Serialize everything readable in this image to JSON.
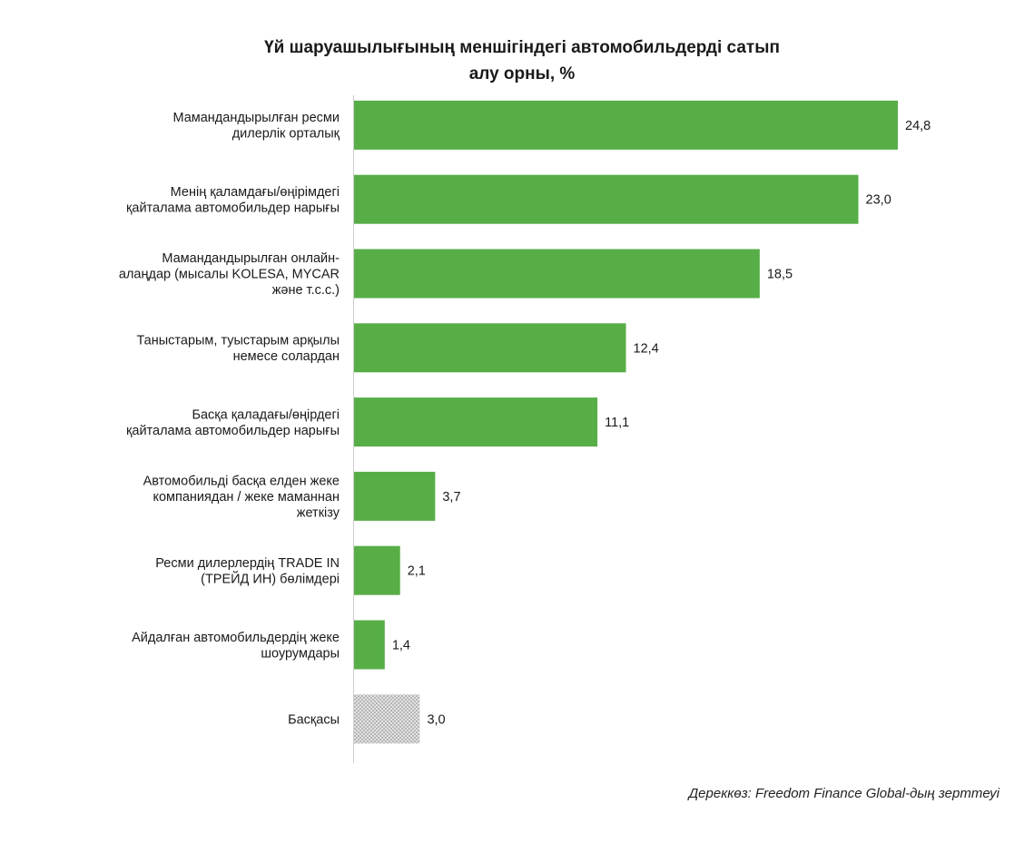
{
  "chart_data": {
    "type": "bar",
    "orientation": "horizontal",
    "title_lines": [
      "Үй шаруашылығының меншігіндегі автомобильдерді сатып",
      "алу орны, %"
    ],
    "categories": [
      [
        "Мамандандырылған ресми",
        "дилерлік орталық"
      ],
      [
        "Менің қаламдағы/өңірімдегі",
        "қайталама автомобильдер нарығы"
      ],
      [
        "Мамандандырылған онлайн-",
        "алаңдар (мысалы KOLESA, MYCAR",
        "және т.с.с.)"
      ],
      [
        "Таныстарым, туыстарым арқылы",
        "немесе солардан"
      ],
      [
        "Басқа қаладағы/өңірдегі",
        "қайталама автомобильдер нарығы"
      ],
      [
        "Автомобильді басқа елден жеке",
        "компаниядан / жеке маманнан",
        "жеткізу"
      ],
      [
        "Ресми дилерлердің TRADE IN",
        "(ТРЕЙД ИН) бөлімдері"
      ],
      [
        "Айдалған автомобильдердің жеке",
        "шоурумдары"
      ],
      [
        "Басқасы"
      ]
    ],
    "values": [
      24.8,
      23.0,
      18.5,
      12.4,
      11.1,
      3.7,
      2.1,
      1.4,
      3.0
    ],
    "value_labels": [
      "24,8",
      "23,0",
      "18,5",
      "12,4",
      "11,1",
      "3,7",
      "2,1",
      "1,4",
      "3,0"
    ],
    "bar_styles": [
      "solid",
      "solid",
      "solid",
      "solid",
      "solid",
      "solid",
      "solid",
      "solid",
      "dotted"
    ],
    "xlim": [
      0,
      26
    ],
    "grid": false,
    "legend": "none",
    "colors": {
      "bar": "#57ae47",
      "other_bar": "#d4d4d4",
      "axis": "#cfcfcf"
    }
  },
  "source": "Дереккөз: Freedom Finance Global-дың зерттеуі"
}
